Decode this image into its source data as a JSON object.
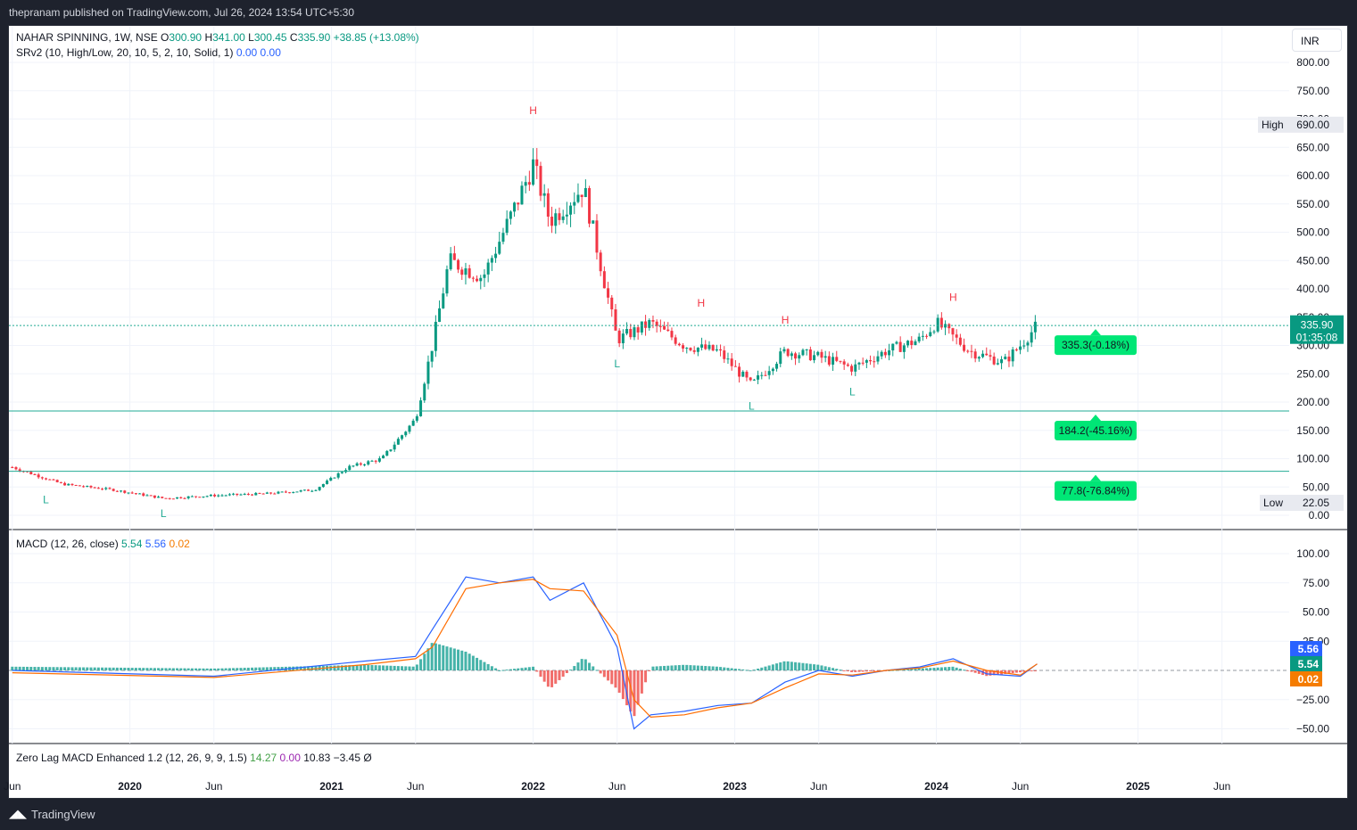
{
  "header": {
    "published": "thepranam published on TradingView.com, Jul 26, 2024 13:54 UTC+5:30"
  },
  "footer": {
    "brand": "TradingView"
  },
  "currency": "INR",
  "legend": {
    "symbol": "NAHAR SPINNING, 1W, NSE",
    "o_label": "O",
    "o": "300.90",
    "h_label": "H",
    "h": "341.00",
    "l_label": "L",
    "l": "300.45",
    "c_label": "C",
    "c": "335.90",
    "change": "+38.85 (+13.08%)",
    "srv2": "SRv2 (10, High/Low, 20, 10, 5, 2, 10, Solid, 1)",
    "srv2_v1": "0.00",
    "srv2_v2": "0.00",
    "macd": "MACD (12, 26, close)",
    "macd_v1": "5.54",
    "macd_v2": "5.56",
    "macd_v3": "0.02",
    "zlmacd": "Zero Lag MACD Enhanced 1.2 (12, 26, 9, 9, 1.5)",
    "zl_v1": "14.27",
    "zl_v2": "0.00",
    "zl_v3": "10.83",
    "zl_v4": "−3.45",
    "zl_v5": "Ø"
  },
  "chart_data": [
    {
      "type": "candlestick",
      "symbol": "NAHAR SPINNING",
      "interval": "1W",
      "exchange": "NSE",
      "currency": "INR",
      "ylim": [
        0,
        800
      ],
      "yticks": [
        "0.00",
        "50.00",
        "100.00",
        "150.00",
        "200.00",
        "250.00",
        "300.00",
        "350.00",
        "400.00",
        "450.00",
        "500.00",
        "550.00",
        "600.00",
        "650.00",
        "700.00",
        "750.00",
        "800.00"
      ],
      "xticks": [
        "Jun",
        "2020",
        "Jun",
        "2021",
        "Jun",
        "2022",
        "Jun",
        "2023",
        "Jun",
        "2024",
        "Jun",
        "2025",
        "Jun"
      ],
      "last_price": "335.90",
      "countdown": "01:35:08",
      "high_label": "High",
      "high": "690.00",
      "low_label": "Low",
      "low": "22.05",
      "close_series": {
        "x": [
          "2019-06",
          "2019-09",
          "2019-12",
          "2020-03",
          "2020-06",
          "2020-09",
          "2020-12",
          "2021-02",
          "2021-04",
          "2021-06",
          "2021-07",
          "2021-08",
          "2021-10",
          "2021-12",
          "2022-01",
          "2022-02",
          "2022-04",
          "2022-06",
          "2022-08",
          "2022-10",
          "2022-12",
          "2023-02",
          "2023-04",
          "2023-06",
          "2023-08",
          "2023-10",
          "2023-12",
          "2024-01",
          "2024-03",
          "2024-05",
          "2024-06",
          "2024-07"
        ],
        "values": [
          85,
          55,
          45,
          30,
          35,
          38,
          45,
          85,
          100,
          170,
          300,
          450,
          420,
          550,
          620,
          520,
          580,
          310,
          340,
          300,
          290,
          230,
          290,
          280,
          260,
          290,
          310,
          340,
          290,
          270,
          300,
          335.9
        ]
      },
      "swing_labels": [
        {
          "label": "L",
          "x": "2019-08",
          "price": 50
        },
        {
          "label": "L",
          "x": "2020-03",
          "price": 25
        },
        {
          "label": "H",
          "x": "2022-01",
          "price": 690
        },
        {
          "label": "L",
          "x": "2022-06",
          "price": 290
        },
        {
          "label": "H",
          "x": "2022-11",
          "price": 350
        },
        {
          "label": "L",
          "x": "2023-02",
          "price": 215
        },
        {
          "label": "H",
          "x": "2023-04",
          "price": 320
        },
        {
          "label": "L",
          "x": "2023-08",
          "price": 240
        },
        {
          "label": "H",
          "x": "2024-02",
          "price": 360
        }
      ],
      "sr_levels": [
        {
          "price": 335.3,
          "label": "335.3(-0.18%)"
        },
        {
          "price": 184.2,
          "label": "184.2(-45.16%)"
        },
        {
          "price": 77.8,
          "label": "77.8(-76.84%)"
        }
      ],
      "colors": {
        "up": "#089981",
        "down": "#f23645",
        "sr": "#22ab94",
        "label_bg": "#00e676"
      }
    },
    {
      "type": "line",
      "title": "MACD (12, 26, close)",
      "ylim": [
        -60,
        110
      ],
      "yticks": [
        "-50.00",
        "-25.00",
        "25.00",
        "50.00",
        "75.00",
        "100.00"
      ],
      "x": [
        "2019-06",
        "2020-06",
        "2021-03",
        "2021-06",
        "2021-07",
        "2021-09",
        "2021-11",
        "2022-01",
        "2022-02",
        "2022-04",
        "2022-06",
        "2022-07",
        "2022-08",
        "2022-10",
        "2022-12",
        "2023-02",
        "2023-04",
        "2023-06",
        "2023-08",
        "2023-10",
        "2023-12",
        "2024-02",
        "2024-04",
        "2024-06",
        "2024-07"
      ],
      "series": [
        {
          "name": "MACD",
          "color": "#2962ff",
          "values": [
            0,
            -5,
            8,
            12,
            35,
            80,
            75,
            80,
            60,
            75,
            20,
            -50,
            -38,
            -35,
            -30,
            -28,
            -10,
            0,
            -5,
            0,
            3,
            10,
            -3,
            -5,
            5.56
          ]
        },
        {
          "name": "Signal",
          "color": "#ff6d00",
          "values": [
            -2,
            -6,
            5,
            10,
            20,
            70,
            75,
            78,
            70,
            68,
            30,
            -25,
            -40,
            -38,
            -32,
            -28,
            -15,
            -3,
            -4,
            0,
            2,
            8,
            0,
            -4,
            5.54
          ]
        }
      ],
      "histogram": {
        "value_label": "0.02"
      }
    },
    {
      "type": "line",
      "title": "Zero Lag MACD Enhanced 1.2 (12, 26, 9, 9, 1.5)",
      "values_shown": [
        "14.27",
        "0.00",
        "10.83",
        "−3.45"
      ]
    }
  ]
}
